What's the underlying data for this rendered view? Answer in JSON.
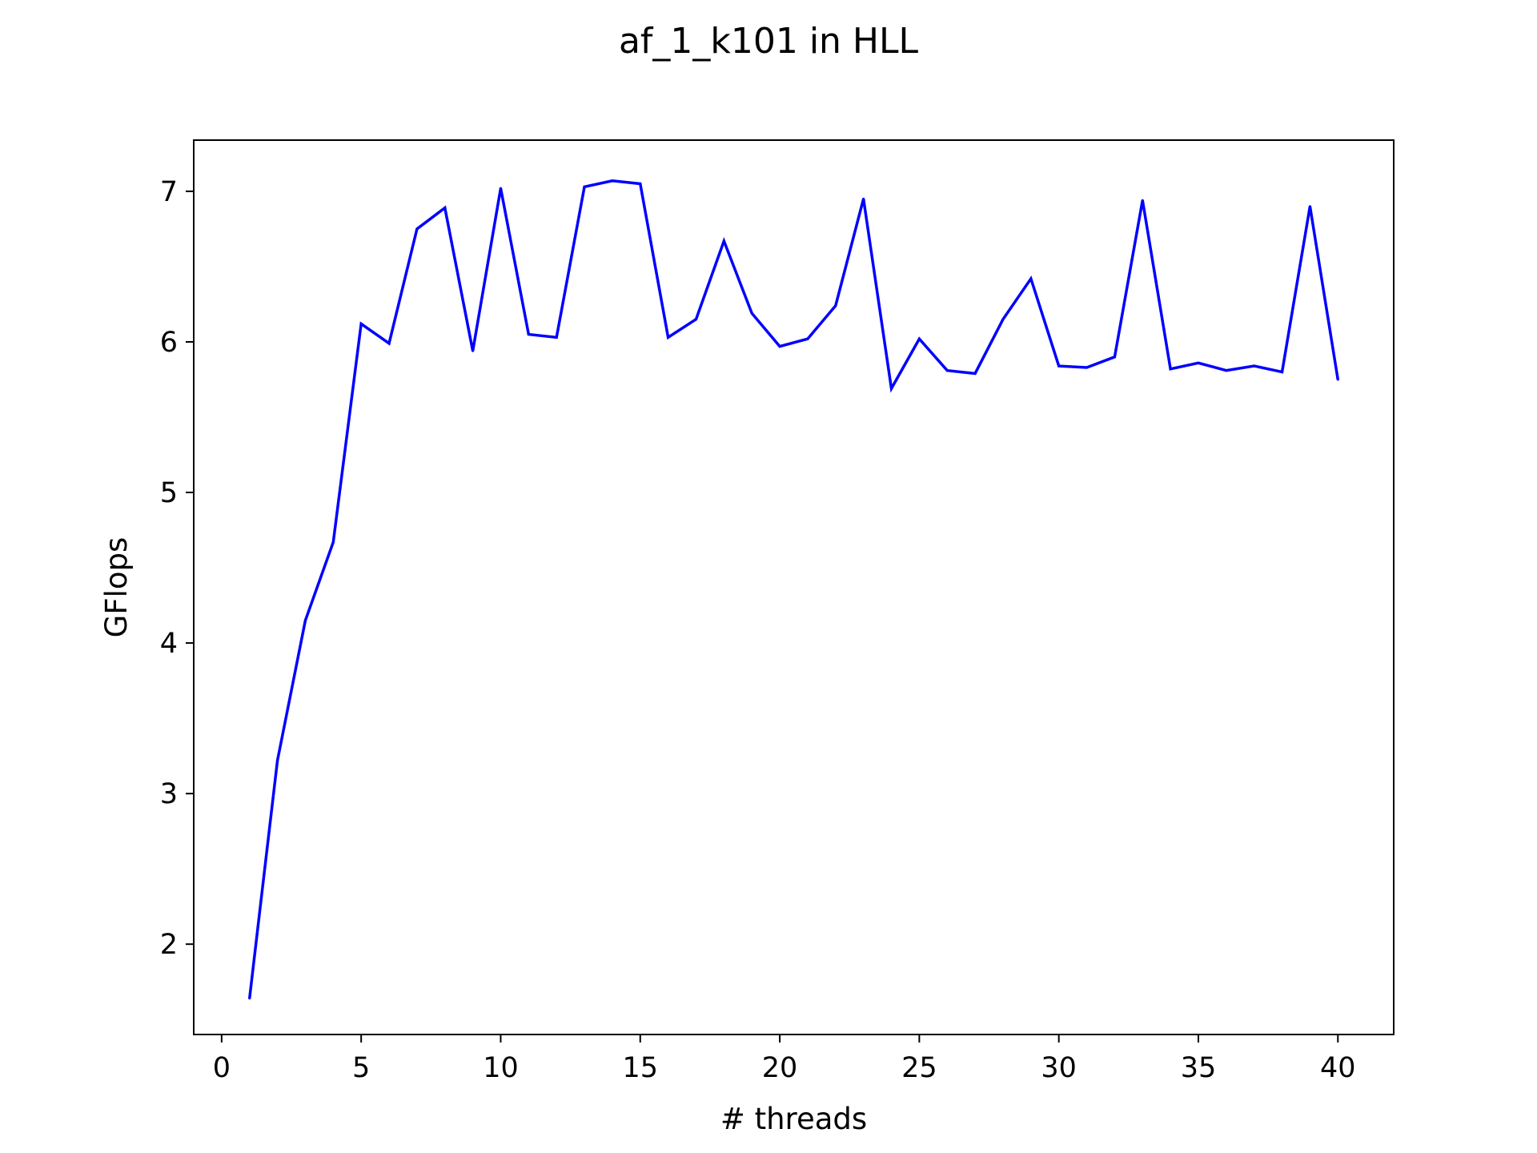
{
  "chart_data": {
    "type": "line",
    "title": "af_1_k101 in HLL",
    "xlabel": "# threads",
    "ylabel": "GFlops",
    "xlim": [
      -1,
      42
    ],
    "ylim": [
      1.4,
      7.34
    ],
    "xticks": [
      0,
      5,
      10,
      15,
      20,
      25,
      30,
      35,
      40
    ],
    "yticks": [
      2,
      3,
      4,
      5,
      6,
      7
    ],
    "grid": false,
    "line_color": "#0000ff",
    "series": [
      {
        "x": [
          1,
          2,
          3,
          4,
          5,
          6,
          7,
          8,
          9,
          10,
          11,
          12,
          13,
          14,
          15,
          16,
          17,
          18,
          19,
          20,
          21,
          22,
          23,
          24,
          25,
          26,
          27,
          28,
          29,
          30,
          31,
          32,
          33,
          34,
          35,
          36,
          37,
          38,
          39,
          40
        ],
        "values": [
          1.64,
          3.22,
          4.15,
          4.67,
          6.12,
          5.99,
          6.75,
          6.89,
          5.94,
          7.02,
          6.05,
          6.03,
          7.03,
          7.07,
          7.05,
          6.03,
          6.15,
          6.67,
          6.19,
          5.97,
          6.02,
          6.24,
          6.95,
          5.69,
          6.02,
          5.81,
          5.79,
          6.15,
          6.42,
          5.84,
          5.83,
          5.9,
          6.94,
          5.82,
          5.86,
          5.81,
          5.84,
          5.8,
          6.9,
          5.75
        ]
      }
    ]
  }
}
